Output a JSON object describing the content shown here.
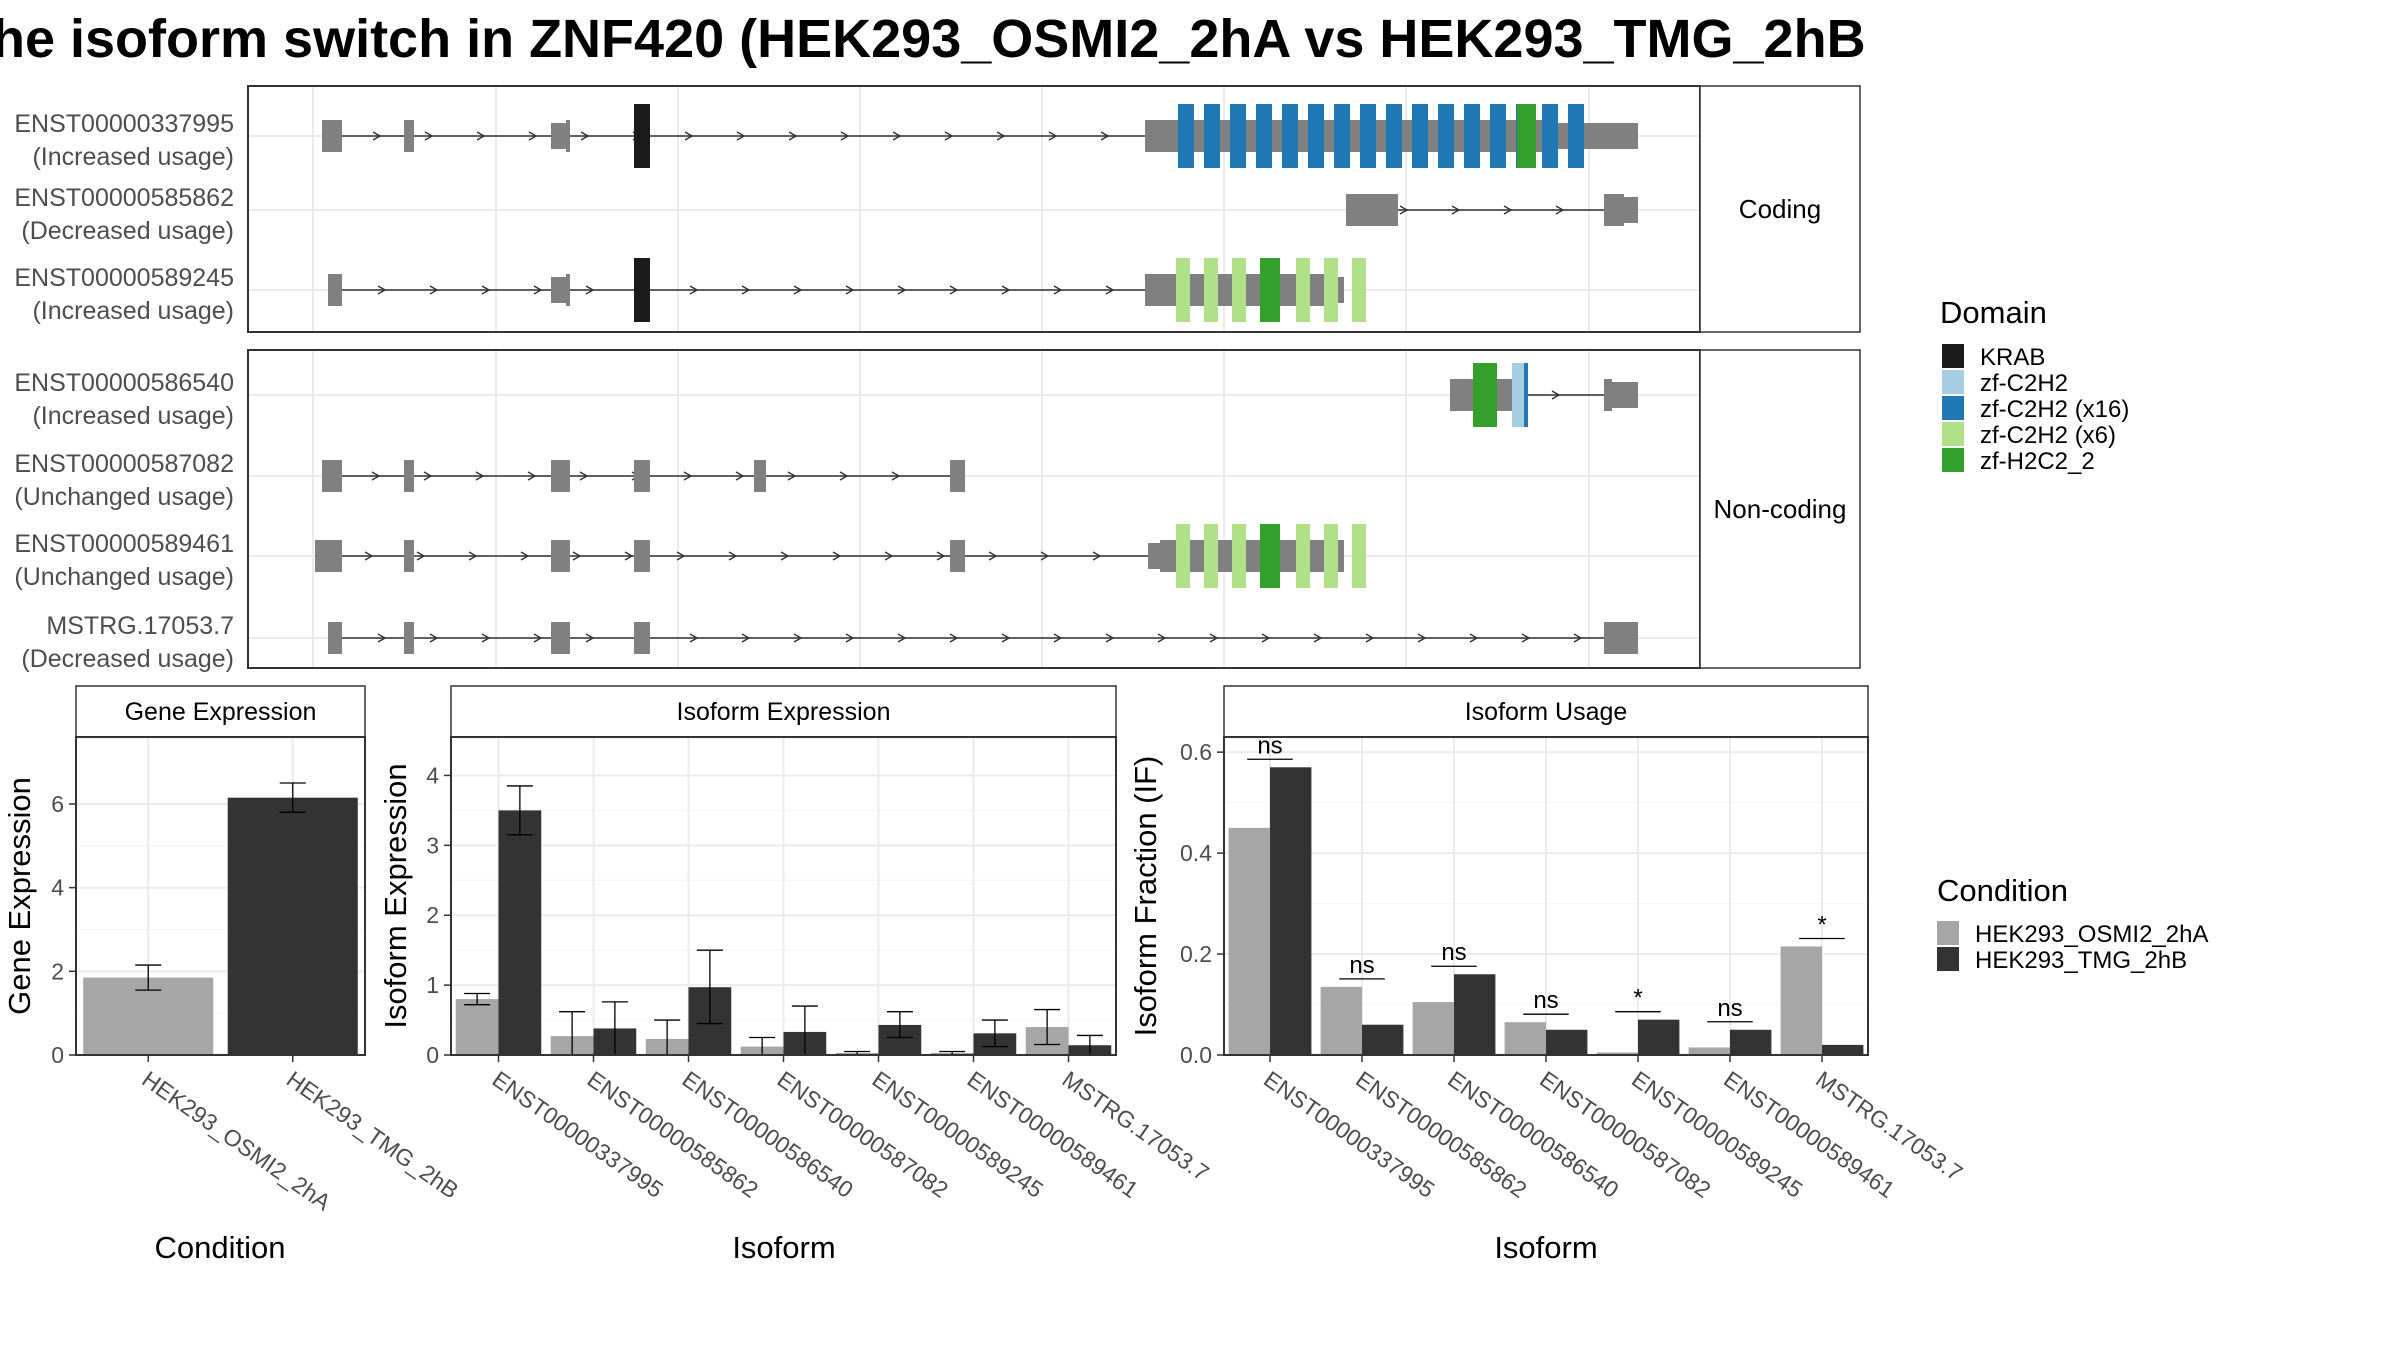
{
  "title": "he isoform switch in ZNF420 (HEK293_OSMI2_2hA vs HEK293_TMG_2hB",
  "structure": {
    "coding_strip": "Coding",
    "noncoding_strip": "Non-coding",
    "domains": [
      {
        "name": "KRAB",
        "color": "#1a1a1a"
      },
      {
        "name": "zf-C2H2",
        "color": "#a6cee3"
      },
      {
        "name": "zf-C2H2 (x16)",
        "color": "#1f78b4"
      },
      {
        "name": "zf-C2H2 (x6)",
        "color": "#b2df8a"
      },
      {
        "name": "zf-H2C2_2",
        "color": "#33a02c"
      }
    ],
    "domain_legend_title": "Domain",
    "coding": [
      {
        "id": "ENST00000337995",
        "usage": "(Increased usage)"
      },
      {
        "id": "ENST00000585862",
        "usage": "(Decreased usage)"
      },
      {
        "id": "ENST00000589245",
        "usage": "(Increased usage)"
      }
    ],
    "noncoding": [
      {
        "id": "ENST00000586540",
        "usage": "(Increased usage)"
      },
      {
        "id": "ENST00000587082",
        "usage": "(Unchanged usage)"
      },
      {
        "id": "ENST00000589461",
        "usage": "(Unchanged usage)"
      },
      {
        "id": "MSTRG.17053.7",
        "usage": "(Decreased usage)"
      }
    ]
  },
  "condition_legend": {
    "title": "Condition",
    "items": [
      {
        "name": "HEK293_OSMI2_2hA",
        "color": "#a6a6a6"
      },
      {
        "name": "HEK293_TMG_2hB",
        "color": "#333333"
      }
    ]
  },
  "chart_data": [
    {
      "type": "bar",
      "title": "Gene Expression",
      "xlabel": "Condition",
      "ylabel": "Gene Expression",
      "ylim": [
        0,
        7.6
      ],
      "yticks": [
        0,
        2,
        4,
        6
      ],
      "categories": [
        "HEK293_OSMI2_2hA",
        "HEK293_TMG_2hB"
      ],
      "values": [
        1.85,
        6.15
      ],
      "errors": [
        [
          1.55,
          2.15
        ],
        [
          5.8,
          6.5
        ]
      ],
      "colors": [
        "#a6a6a6",
        "#333333"
      ]
    },
    {
      "type": "bar",
      "title": "Isoform Expression",
      "xlabel": "Isoform",
      "ylabel": "Isoform Expression",
      "ylim": [
        0,
        4.55
      ],
      "yticks": [
        0,
        1,
        2,
        3,
        4
      ],
      "categories": [
        "ENST00000337995",
        "ENST00000585862",
        "ENST00000586540",
        "ENST00000587082",
        "ENST00000589245",
        "ENST00000589461",
        "MSTRG.17053.7"
      ],
      "series": [
        {
          "name": "HEK293_OSMI2_2hA",
          "values": [
            0.8,
            0.27,
            0.23,
            0.12,
            0.03,
            0.03,
            0.4
          ],
          "errors": [
            [
              0.72,
              0.88
            ],
            [
              0.0,
              0.62
            ],
            [
              0.0,
              0.5
            ],
            [
              0.0,
              0.25
            ],
            [
              0.0,
              0.05
            ],
            [
              0.0,
              0.05
            ],
            [
              0.15,
              0.65
            ]
          ]
        },
        {
          "name": "HEK293_TMG_2hB",
          "values": [
            3.5,
            0.38,
            0.97,
            0.33,
            0.43,
            0.31,
            0.14
          ],
          "errors": [
            [
              3.15,
              3.85
            ],
            [
              0.0,
              0.76
            ],
            [
              0.45,
              1.5
            ],
            [
              0.0,
              0.7
            ],
            [
              0.25,
              0.62
            ],
            [
              0.12,
              0.5
            ],
            [
              0.0,
              0.28
            ]
          ]
        }
      ]
    },
    {
      "type": "bar",
      "title": "Isoform Usage",
      "xlabel": "Isoform",
      "ylabel": "Isoform Fraction (IF)",
      "ylim": [
        0,
        0.63
      ],
      "yticks": [
        "0.0",
        "0.2",
        "0.4",
        "0.6"
      ],
      "categories": [
        "ENST00000337995",
        "ENST00000585862",
        "ENST00000586540",
        "ENST00000587082",
        "ENST00000589245",
        "ENST00000589461",
        "MSTRG.17053.7"
      ],
      "series": [
        {
          "name": "HEK293_OSMI2_2hA",
          "values": [
            0.45,
            0.135,
            0.105,
            0.065,
            0.005,
            0.015,
            0.215
          ]
        },
        {
          "name": "HEK293_TMG_2hB",
          "values": [
            0.57,
            0.06,
            0.16,
            0.05,
            0.07,
            0.05,
            0.02
          ]
        }
      ],
      "significance": [
        "ns",
        "ns",
        "ns",
        "ns",
        "*",
        "ns",
        "*"
      ]
    }
  ]
}
